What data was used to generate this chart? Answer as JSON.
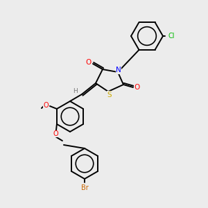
{
  "bg_color": "#ececec",
  "bond_color": "#000000",
  "atom_colors": {
    "O": "#ff0000",
    "N": "#0000ff",
    "S": "#ccaa00",
    "Cl": "#00bb00",
    "Br": "#cc6600",
    "H": "#777777",
    "C": "#000000"
  },
  "lw": 1.4
}
